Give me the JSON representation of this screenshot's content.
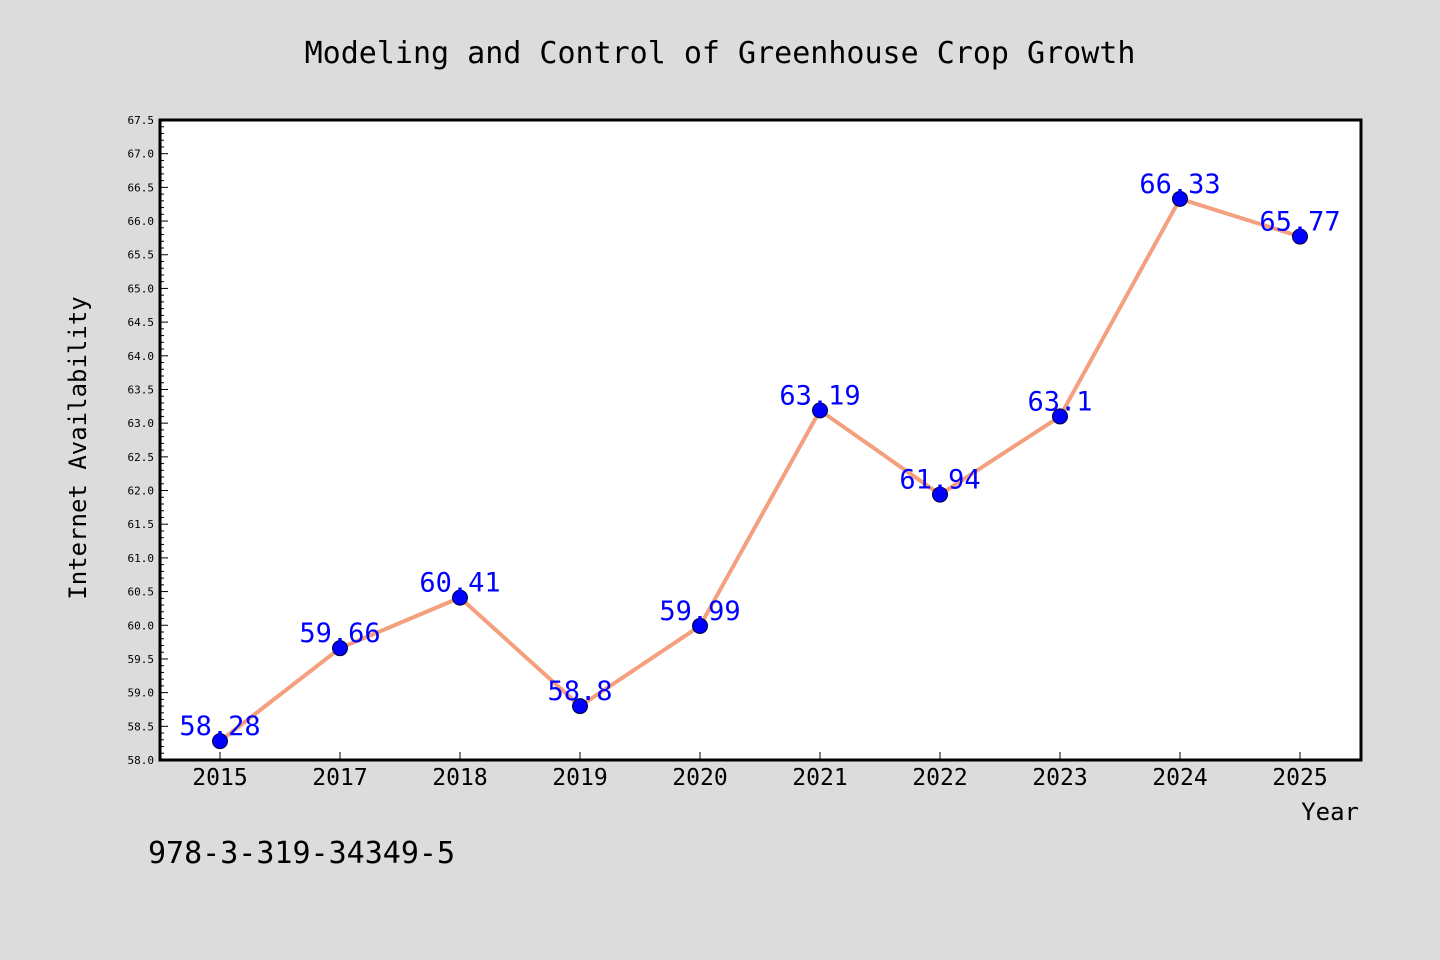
{
  "chart_data": {
    "type": "line",
    "title": "Modeling and Control of Greenhouse Crop Growth",
    "xlabel": "Year",
    "ylabel": "Internet Availability",
    "categories": [
      "2015",
      "2017",
      "2018",
      "2019",
      "2020",
      "2021",
      "2022",
      "2023",
      "2024",
      "2025"
    ],
    "series": [
      {
        "values": [
          58.28,
          59.66,
          60.41,
          58.8,
          59.99,
          63.19,
          61.94,
          63.1,
          66.33,
          65.77
        ],
        "labels": [
          "58.28",
          "59.66",
          "60.41",
          "58.8",
          "59.99",
          "63.19",
          "61.94",
          "63.1",
          "66.33",
          "65.77"
        ]
      }
    ],
    "ylim": [
      58.0,
      67.5
    ],
    "ytick_step": 0.5,
    "grid": false,
    "legend": "none",
    "annotation": "978-3-319-34349-5",
    "colors": {
      "figure_background": "#dcdcdc",
      "plot_background": "#ffffff",
      "line": "#f4a07e",
      "marker": "#0000ff",
      "data_label": "#0000ff",
      "axes": "#000000",
      "text": "#000000"
    }
  }
}
